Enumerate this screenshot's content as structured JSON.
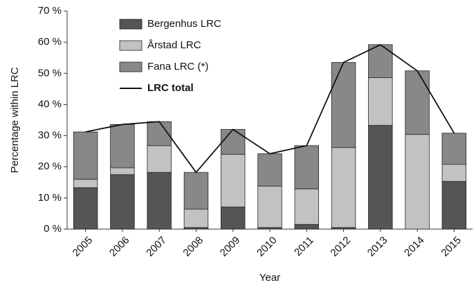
{
  "chart_data": {
    "type": "bar",
    "stacked": true,
    "y_label": "Percentage within LRC",
    "x_label": "Year",
    "categories": [
      "2005",
      "2006",
      "2007",
      "2008",
      "2009",
      "2010",
      "2011",
      "2012",
      "2013",
      "2014",
      "2015"
    ],
    "series": [
      {
        "name": "Bergenhus LRC",
        "color": "#555555",
        "values": [
          13.3,
          17.5,
          18.2,
          0.5,
          7.1,
          0.5,
          1.5,
          0.5,
          33.3,
          0,
          15.3
        ]
      },
      {
        "name": "Årstad LRC",
        "color": "#c2c2c2",
        "values": [
          2.7,
          2.2,
          8.6,
          5.9,
          16.9,
          13.3,
          11.4,
          25.7,
          15.3,
          30.4,
          5.5
        ]
      },
      {
        "name": "Fana LRC (*)",
        "color": "#888888",
        "values": [
          15.2,
          13.9,
          7.7,
          11.8,
          8.0,
          10.4,
          13.9,
          27.3,
          10.6,
          20.4,
          10.0
        ]
      },
      {
        "name": "LRC total",
        "color": "#111111",
        "type": "line",
        "values": [
          31.2,
          33.6,
          34.5,
          18.2,
          32.0,
          24.2,
          26.8,
          53.5,
          59.2,
          50.8,
          30.8
        ]
      }
    ],
    "ylim": [
      0,
      70
    ],
    "yticks": [
      {
        "value": 0,
        "label": "0 %"
      },
      {
        "value": 10,
        "label": "10 %"
      },
      {
        "value": 20,
        "label": "20 %"
      },
      {
        "value": 30,
        "label": "30 %"
      },
      {
        "value": 40,
        "label": "40 %"
      },
      {
        "value": 50,
        "label": "50 %"
      },
      {
        "value": 60,
        "label": "60 %"
      },
      {
        "value": 70,
        "label": "70 %"
      }
    ],
    "grid": false,
    "legend": "upper left"
  }
}
